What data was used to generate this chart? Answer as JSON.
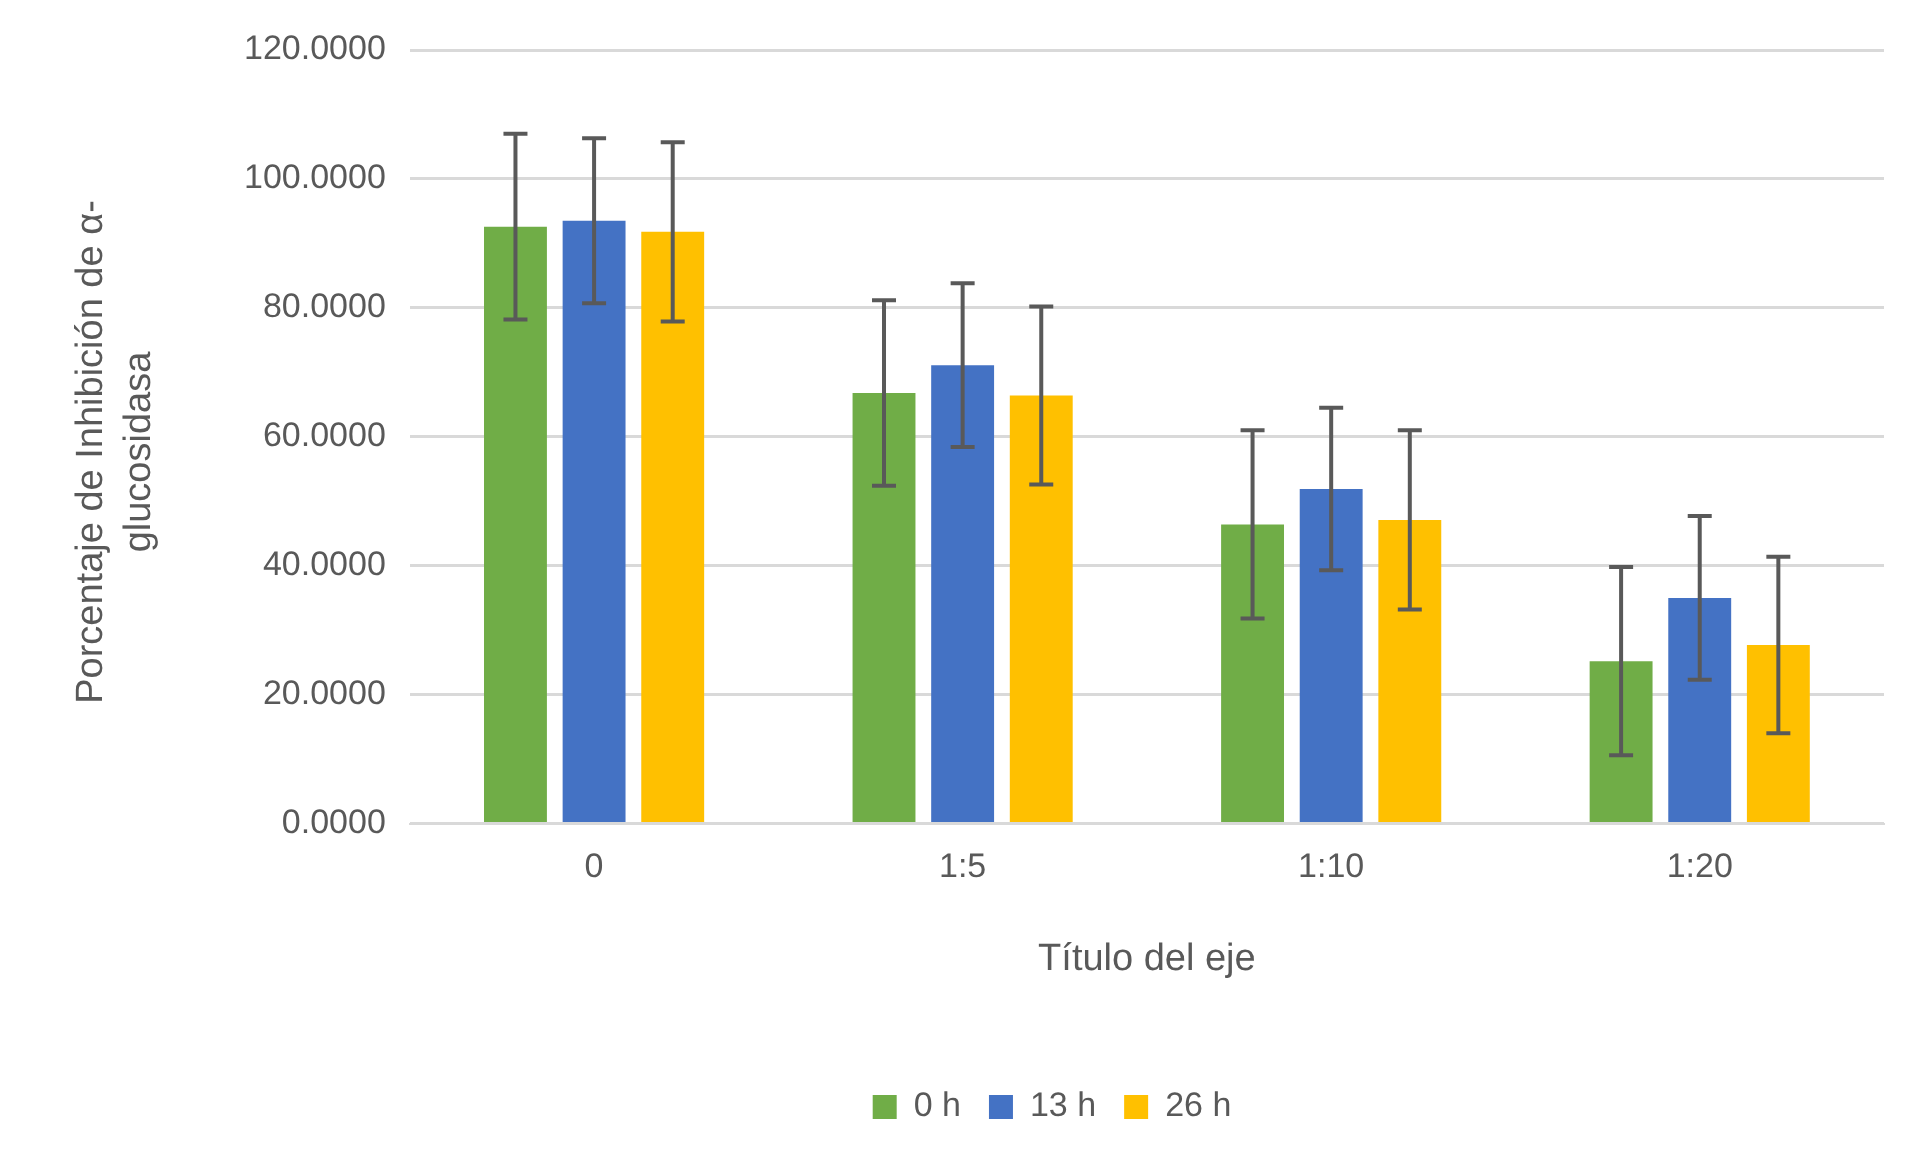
{
  "chart_data": {
    "type": "bar",
    "xlabel": "Título del eje",
    "ylabel": "Porcentaje de Inhibición de α-glucosidasa",
    "categories": [
      "0",
      "1:5",
      "1:10",
      "1:20"
    ],
    "series": [
      {
        "name": "0 h",
        "color": "#70ad47",
        "values": [
          92.6,
          66.8,
          46.4,
          25.2
        ],
        "errors": [
          14.4,
          14.4,
          14.6,
          14.6
        ]
      },
      {
        "name": "13 h",
        "color": "#4472c4",
        "values": [
          93.5,
          71.1,
          51.9,
          35.0
        ],
        "errors": [
          12.8,
          12.7,
          12.6,
          12.7
        ]
      },
      {
        "name": "26 h",
        "color": "#ffc000",
        "values": [
          91.8,
          66.4,
          47.1,
          27.7
        ],
        "errors": [
          13.9,
          13.8,
          13.9,
          13.7
        ]
      }
    ],
    "ylim": [
      0,
      120
    ],
    "yticks": [
      {
        "value": 0,
        "label": "0.0000"
      },
      {
        "value": 20,
        "label": "20.0000"
      },
      {
        "value": 40,
        "label": "40.0000"
      },
      {
        "value": 60,
        "label": "60.0000"
      },
      {
        "value": 80,
        "label": "80.0000"
      },
      {
        "value": 100,
        "label": "100.0000"
      },
      {
        "value": 120,
        "label": "120.0000"
      }
    ],
    "grid": "y",
    "legend": "bottom"
  }
}
